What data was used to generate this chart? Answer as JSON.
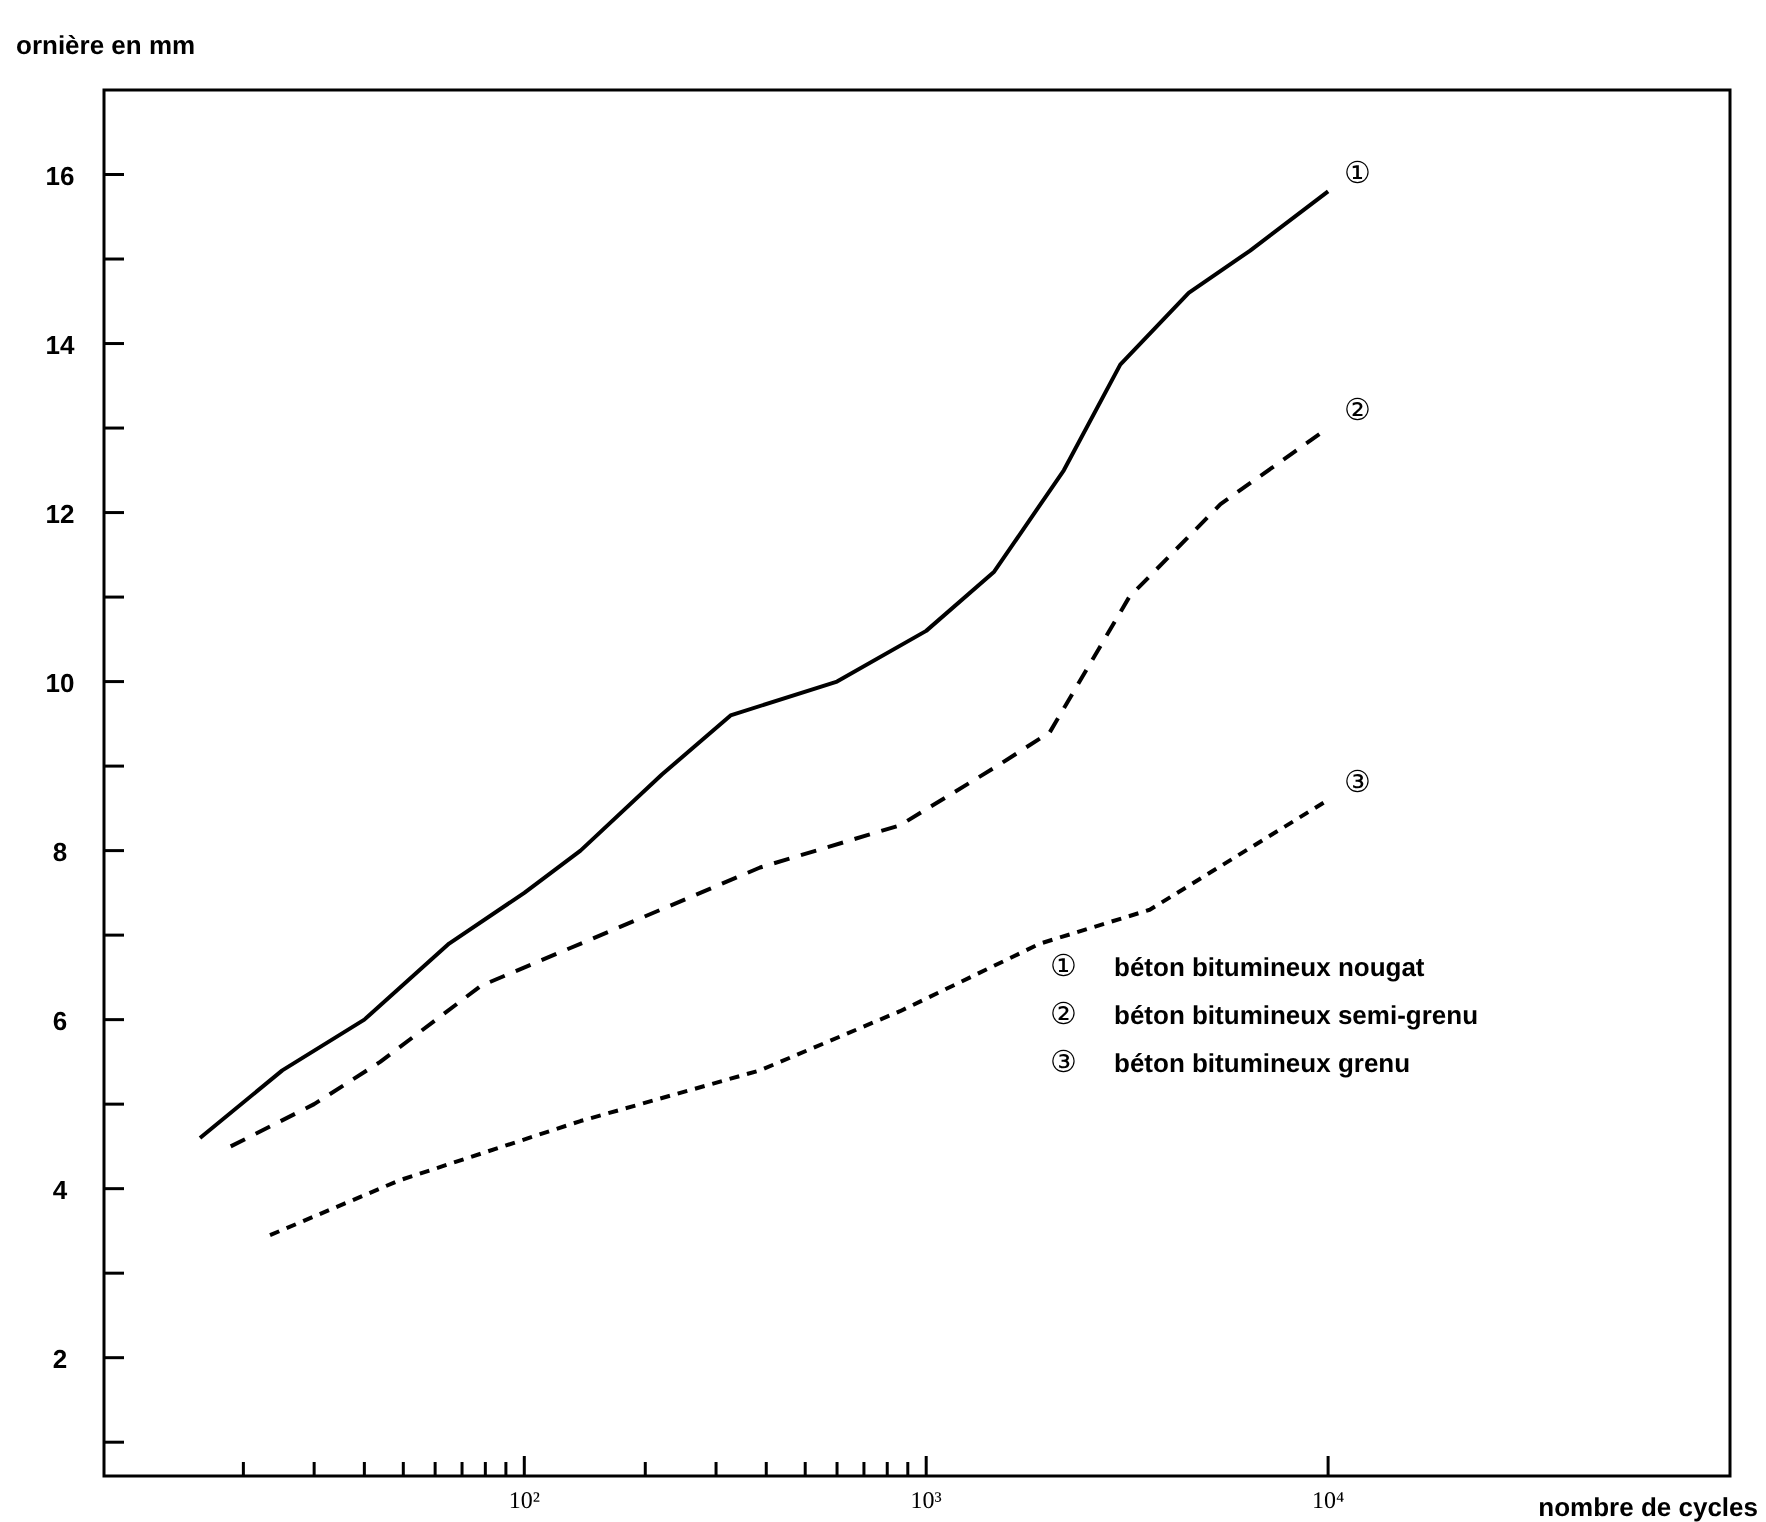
{
  "chart_data": {
    "type": "line",
    "xlabel": "nombre de cycles",
    "ylabel": "ornière en mm",
    "log": "x",
    "xlim": [
      9,
      100000
    ],
    "ylim": [
      0.6,
      17
    ],
    "xticks": [
      {
        "value": 20,
        "label": null
      },
      {
        "value": 30,
        "label": null
      },
      {
        "value": 40,
        "label": null
      },
      {
        "value": 50,
        "label": null
      },
      {
        "value": 60,
        "label": null
      },
      {
        "value": 70,
        "label": null
      },
      {
        "value": 80,
        "label": null
      },
      {
        "value": 90,
        "label": null
      },
      {
        "value": 100,
        "label": "10²"
      },
      {
        "value": 200,
        "label": null
      },
      {
        "value": 300,
        "label": null
      },
      {
        "value": 400,
        "label": null
      },
      {
        "value": 500,
        "label": null
      },
      {
        "value": 600,
        "label": null
      },
      {
        "value": 700,
        "label": null
      },
      {
        "value": 800,
        "label": null
      },
      {
        "value": 900,
        "label": null
      },
      {
        "value": 1000,
        "label": "10³"
      },
      {
        "value": 10000,
        "label": "10⁴"
      }
    ],
    "yticks": [
      {
        "value": 1,
        "label": null
      },
      2,
      {
        "value": 3,
        "label": null
      },
      4,
      {
        "value": 5,
        "label": null
      },
      6,
      {
        "value": 7,
        "label": null
      },
      8,
      {
        "value": 9,
        "label": null
      },
      10,
      {
        "value": 11,
        "label": null
      },
      12,
      {
        "value": 13,
        "label": null
      },
      14,
      {
        "value": 15,
        "label": null
      },
      16
    ],
    "grid": false,
    "series": [
      {
        "color": "#000000",
        "line_style": "solid",
        "x": [
          15.6,
          25,
          40,
          65,
          100,
          138,
          220,
          326,
          600,
          1000,
          1476,
          2200,
          3040,
          4500,
          6400,
          10000
        ],
        "values": [
          4.6,
          5.4,
          6.0,
          6.9,
          7.5,
          8.0,
          8.9,
          9.6,
          10.0,
          10.6,
          11.3,
          12.5,
          13.75,
          14.6,
          15.1,
          15.8
        ]
      },
      {
        "color": "#000000",
        "line_style": "dashed",
        "x": [
          18.6,
          30,
          43.8,
          78,
          155,
          386,
          861,
          1500,
          2030,
          3200,
          5400,
          10000
        ],
        "values": [
          4.5,
          5.0,
          5.5,
          6.4,
          7.0,
          7.8,
          8.3,
          9.0,
          9.4,
          11.0,
          12.1,
          13.0
        ]
      },
      {
        "color": "#000000",
        "line_style": "dashed",
        "x": [
          23.3,
          49,
          138,
          386,
          861,
          1920,
          3600,
          10000
        ],
        "values": [
          3.45,
          4.1,
          4.8,
          5.4,
          6.1,
          6.9,
          7.3,
          8.6
        ]
      }
    ],
    "annotations": [
      "①",
      "②",
      "③",
      "① béton bitumineux nougat",
      "② béton bitumineux semi-grenu",
      "③ béton bitumineux grenu"
    ]
  }
}
